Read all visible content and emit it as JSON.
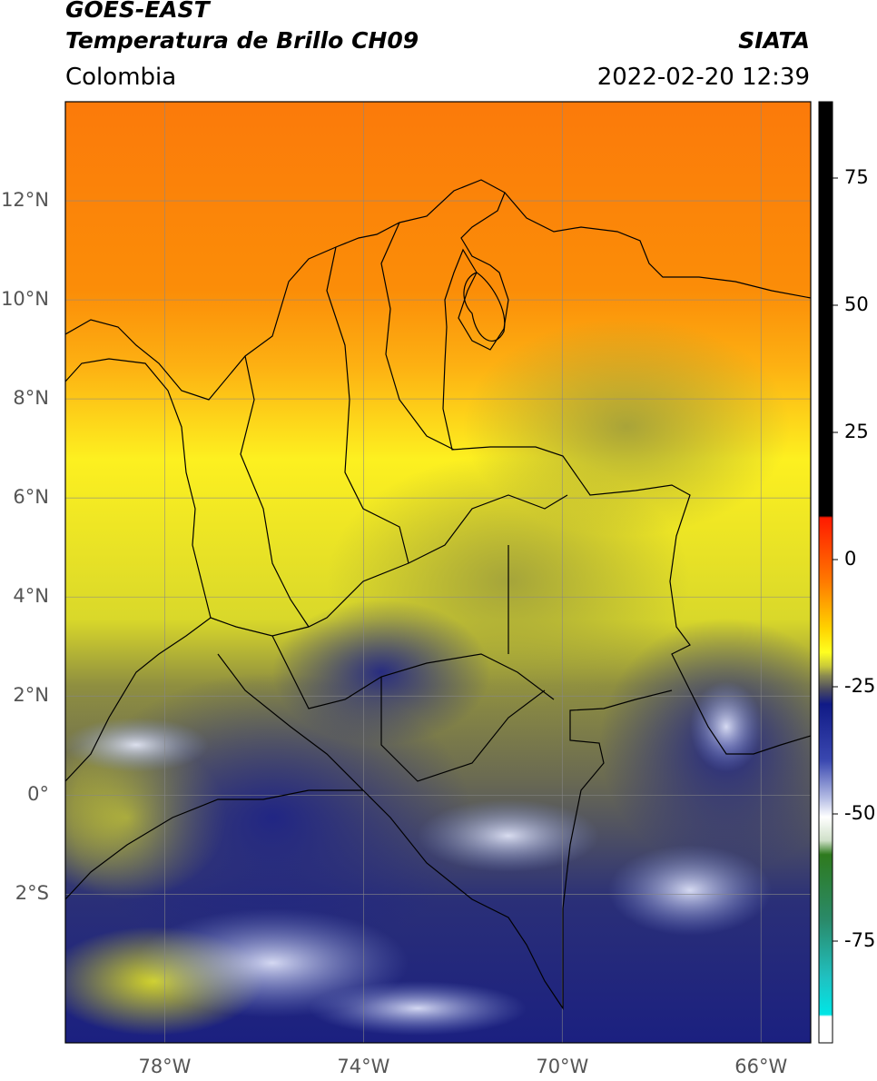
{
  "header": {
    "satellite": "GOES-EAST",
    "product": "Temperatura de Brillo CH09",
    "region": "Colombia",
    "source": "SIATA",
    "datetime": "2022-02-20 12:39"
  },
  "map": {
    "lon_range": [
      -80,
      -65
    ],
    "lat_range": [
      -5,
      14
    ],
    "lat_ticks": [
      {
        "value": 12,
        "label": "12°N"
      },
      {
        "value": 10,
        "label": "10°N"
      },
      {
        "value": 8,
        "label": "8°N"
      },
      {
        "value": 6,
        "label": "6°N"
      },
      {
        "value": 4,
        "label": "4°N"
      },
      {
        "value": 2,
        "label": "2°N"
      },
      {
        "value": 0,
        "label": "0°"
      },
      {
        "value": -2,
        "label": "2°S"
      }
    ],
    "lon_ticks": [
      {
        "value": -78,
        "label": "78°W"
      },
      {
        "value": -74,
        "label": "74°W"
      },
      {
        "value": -70,
        "label": "70°W"
      },
      {
        "value": -66,
        "label": "66°W"
      }
    ],
    "gridlines": true
  },
  "colorbar": {
    "range": [
      -95,
      90
    ],
    "ticks": [
      {
        "value": 75,
        "label": "75"
      },
      {
        "value": 50,
        "label": "50"
      },
      {
        "value": 25,
        "label": "25"
      },
      {
        "value": 0,
        "label": "0"
      },
      {
        "value": -25,
        "label": "-25"
      },
      {
        "value": -50,
        "label": "-50"
      },
      {
        "value": -75,
        "label": "-75"
      }
    ]
  }
}
